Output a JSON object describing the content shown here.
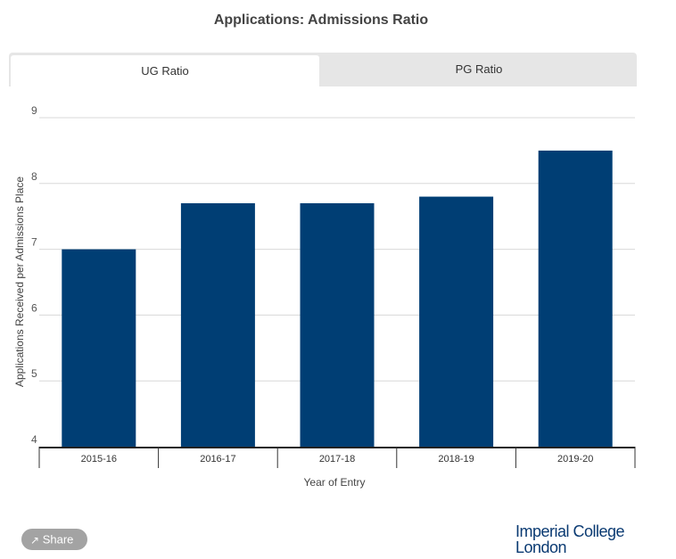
{
  "tabs": [
    {
      "label": "UG Ratio",
      "active": true
    },
    {
      "label": "PG Ratio",
      "active": false
    }
  ],
  "share_label": "Share",
  "logo_text": [
    "Imperial College",
    "London"
  ],
  "colors": {
    "bar": "#003e74"
  },
  "chart_data": {
    "type": "bar",
    "title": "Applications: Admissions Ratio",
    "xlabel": "Year of Entry",
    "ylabel": "Applications Received per Admissions Place",
    "categories": [
      "2015-16",
      "2016-17",
      "2017-18",
      "2018-19",
      "2019-20"
    ],
    "values": [
      7.0,
      7.7,
      7.7,
      7.8,
      8.5
    ],
    "ylim": [
      4,
      9
    ],
    "yticks": [
      "4",
      "5",
      "6",
      "7",
      "8",
      "9"
    ],
    "grid": true
  }
}
